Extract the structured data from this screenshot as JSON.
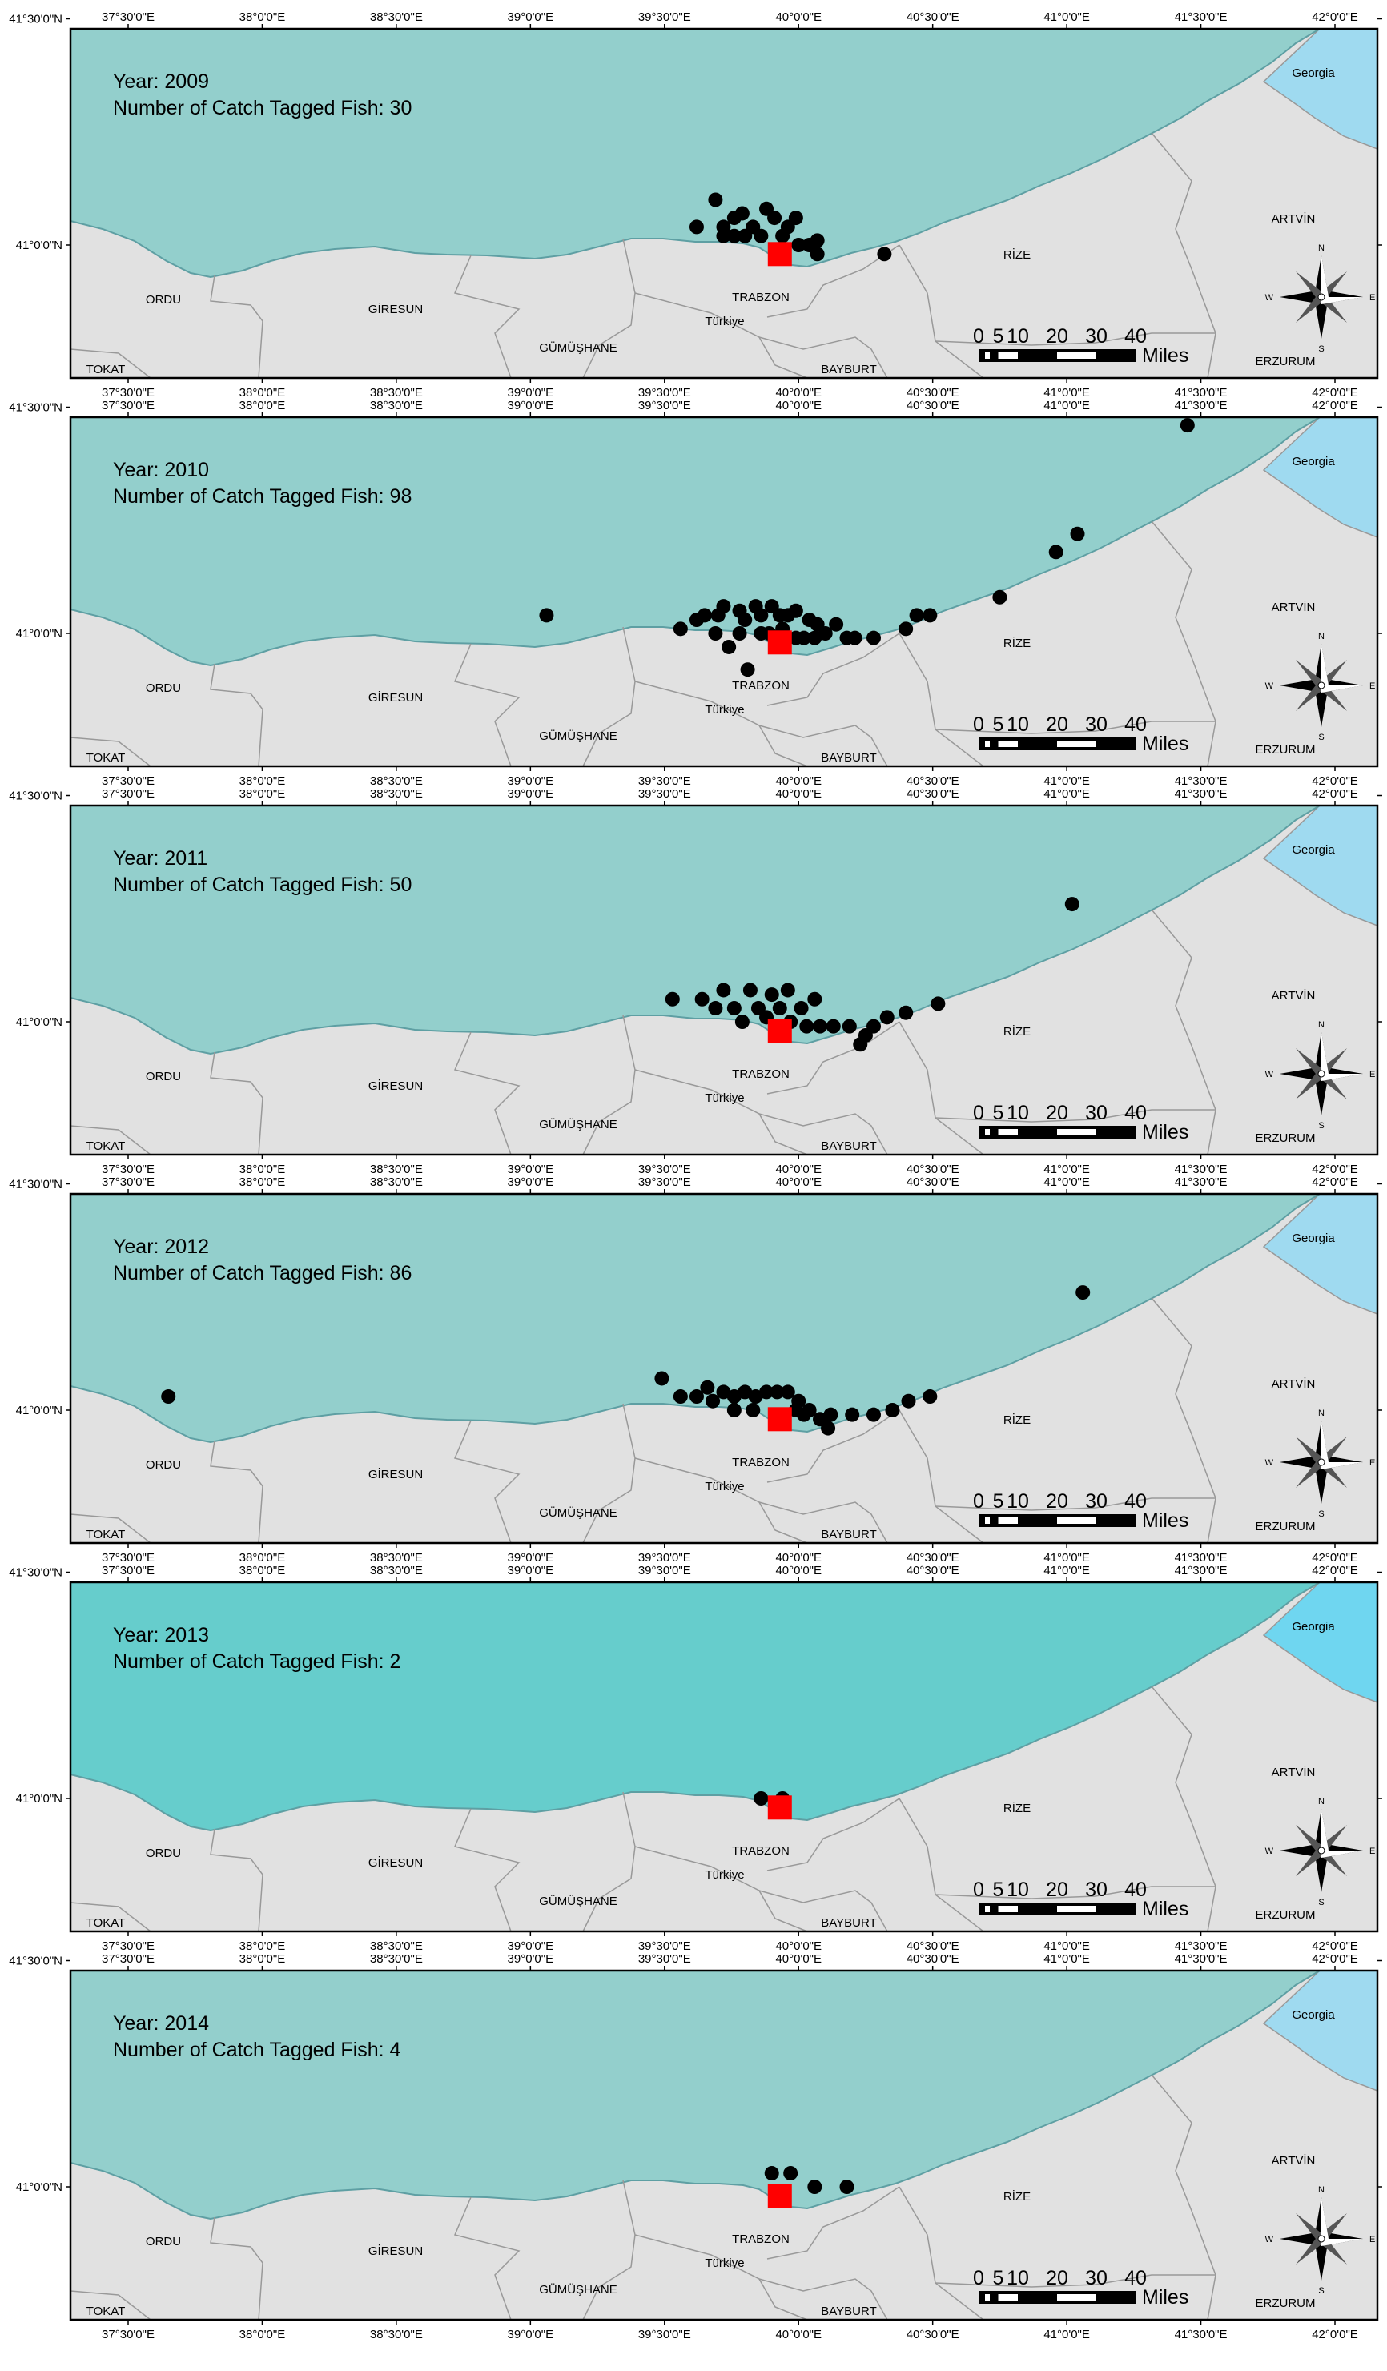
{
  "lon_ticks": [
    "37°30'0\"E",
    "38°0'0\"E",
    "38°30'0\"E",
    "39°0'0\"E",
    "39°30'0\"E",
    "40°0'0\"E",
    "40°30'0\"E",
    "41°0'0\"E",
    "41°30'0\"E",
    "42°0'0\"E"
  ],
  "lat_ticks": [
    "41°30'0\"N",
    "41°0'0\"N"
  ],
  "year_label": "Year:",
  "count_label": "Number of Catch Tagged Fish:",
  "place_labels": {
    "georgia": "Georgia",
    "artvin": "ARTVİN",
    "rize": "RİZE",
    "ordu": "ORDU",
    "giresun": "GİRESUN",
    "trabzon": "TRABZON",
    "turkiye": "Türkiye",
    "gumushane": "GÜMÜŞHANE",
    "bayburt": "BAYBURT",
    "tokat": "TOKAT",
    "erzurum": "ERZURUM"
  },
  "scale_bar": {
    "ticks": [
      "0",
      "5",
      "10",
      "20",
      "30",
      "40"
    ],
    "unit": "Miles"
  },
  "compass": {
    "n": "N",
    "s": "S",
    "e": "E",
    "w": "W"
  },
  "colors": {
    "sea": "#93cfcc",
    "sea_2013": "#66cdcc",
    "land": "#e1e1e1",
    "georgia": "#9fdaf0",
    "georgia_2013": "#6fd6f0",
    "catch": "#000000",
    "release": "#ff0000",
    "border": "#999999"
  },
  "release_site": {
    "lon": 39.93,
    "lat": 40.98
  },
  "panels": [
    {
      "year": "2009",
      "count": "30",
      "points": [
        [
          39.62,
          41.04
        ],
        [
          39.69,
          41.1
        ],
        [
          39.72,
          41.04
        ],
        [
          39.76,
          41.06
        ],
        [
          39.83,
          41.04
        ],
        [
          39.91,
          41.06
        ],
        [
          39.96,
          41.04
        ],
        [
          40.0,
          41.0
        ],
        [
          40.07,
          40.98
        ],
        [
          40.32,
          40.98
        ],
        [
          39.72,
          41.02
        ],
        [
          39.76,
          41.02
        ],
        [
          39.8,
          41.02
        ],
        [
          39.86,
          41.02
        ],
        [
          39.94,
          41.02
        ],
        [
          40.04,
          41.0
        ],
        [
          40.07,
          41.01
        ],
        [
          39.79,
          41.07
        ],
        [
          39.88,
          41.08
        ],
        [
          39.99,
          41.06
        ]
      ]
    },
    {
      "year": "2010",
      "count": "98",
      "points": [
        [
          39.06,
          41.04
        ],
        [
          39.56,
          41.01
        ],
        [
          39.62,
          41.03
        ],
        [
          39.65,
          41.04
        ],
        [
          39.7,
          41.04
        ],
        [
          39.72,
          41.06
        ],
        [
          39.78,
          41.05
        ],
        [
          39.8,
          41.03
        ],
        [
          39.84,
          41.06
        ],
        [
          39.86,
          41.04
        ],
        [
          39.9,
          41.06
        ],
        [
          39.93,
          41.04
        ],
        [
          39.96,
          41.04
        ],
        [
          39.99,
          41.05
        ],
        [
          40.04,
          41.03
        ],
        [
          40.07,
          41.02
        ],
        [
          40.1,
          41.0
        ],
        [
          40.14,
          41.02
        ],
        [
          40.18,
          40.99
        ],
        [
          40.21,
          40.99
        ],
        [
          40.28,
          40.99
        ],
        [
          40.4,
          41.01
        ],
        [
          40.44,
          41.04
        ],
        [
          40.49,
          41.04
        ],
        [
          40.75,
          41.08
        ],
        [
          40.96,
          41.18
        ],
        [
          41.04,
          41.22
        ],
        [
          41.45,
          41.46
        ],
        [
          39.74,
          40.97
        ],
        [
          39.81,
          40.92
        ],
        [
          39.78,
          41.0
        ],
        [
          39.86,
          41.0
        ],
        [
          39.89,
          41.0
        ],
        [
          39.99,
          40.99
        ],
        [
          40.02,
          40.99
        ],
        [
          40.06,
          40.99
        ],
        [
          39.69,
          41.0
        ],
        [
          39.94,
          41.01
        ]
      ]
    },
    {
      "year": "2011",
      "count": "50",
      "points": [
        [
          39.53,
          41.05
        ],
        [
          39.64,
          41.05
        ],
        [
          39.69,
          41.03
        ],
        [
          39.72,
          41.07
        ],
        [
          39.76,
          41.03
        ],
        [
          39.82,
          41.07
        ],
        [
          39.85,
          41.03
        ],
        [
          39.9,
          41.06
        ],
        [
          39.93,
          41.03
        ],
        [
          39.96,
          41.07
        ],
        [
          40.01,
          41.03
        ],
        [
          40.06,
          41.05
        ],
        [
          40.08,
          40.99
        ],
        [
          40.13,
          40.99
        ],
        [
          40.25,
          40.97
        ],
        [
          40.28,
          40.99
        ],
        [
          40.33,
          41.01
        ],
        [
          40.4,
          41.02
        ],
        [
          40.52,
          41.04
        ],
        [
          41.02,
          41.26
        ],
        [
          39.79,
          41.0
        ],
        [
          39.88,
          41.01
        ],
        [
          39.97,
          41.0
        ],
        [
          40.03,
          40.99
        ],
        [
          40.19,
          40.99
        ],
        [
          40.23,
          40.95
        ]
      ]
    },
    {
      "year": "2012",
      "count": "86",
      "points": [
        [
          37.65,
          41.03
        ],
        [
          39.49,
          41.07
        ],
        [
          39.56,
          41.03
        ],
        [
          39.62,
          41.03
        ],
        [
          39.66,
          41.05
        ],
        [
          39.68,
          41.02
        ],
        [
          39.72,
          41.04
        ],
        [
          39.76,
          41.03
        ],
        [
          39.8,
          41.04
        ],
        [
          39.84,
          41.03
        ],
        [
          39.88,
          41.04
        ],
        [
          39.92,
          41.04
        ],
        [
          39.96,
          41.04
        ],
        [
          40.0,
          41.02
        ],
        [
          40.04,
          41.0
        ],
        [
          40.08,
          40.98
        ],
        [
          40.12,
          40.99
        ],
        [
          40.2,
          40.99
        ],
        [
          40.28,
          40.99
        ],
        [
          40.35,
          41.0
        ],
        [
          40.41,
          41.02
        ],
        [
          40.49,
          41.03
        ],
        [
          41.06,
          41.26
        ],
        [
          39.76,
          41.0
        ],
        [
          39.83,
          41.0
        ],
        [
          40.02,
          40.99
        ],
        [
          40.11,
          40.96
        ],
        [
          39.99,
          41.0
        ]
      ]
    },
    {
      "year": "2013",
      "count": "2",
      "points": [
        [
          39.86,
          41.0
        ],
        [
          39.94,
          41.0
        ]
      ]
    },
    {
      "year": "2014",
      "count": "4",
      "points": [
        [
          39.9,
          41.03
        ],
        [
          39.97,
          41.03
        ],
        [
          40.06,
          41.0
        ],
        [
          40.18,
          41.0
        ]
      ]
    }
  ]
}
